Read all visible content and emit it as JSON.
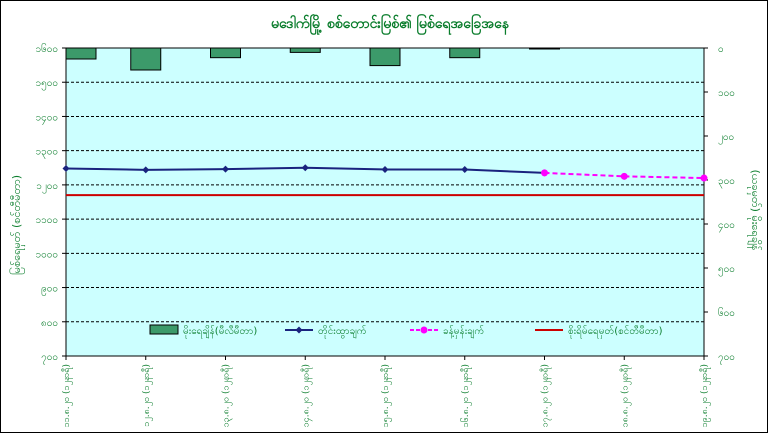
{
  "chart_data": {
    "type": "bar+line",
    "title": "မဒေါက်မြို့ စစ်တောင်းမြစ်၏ မြစ်ရေအခြေအနေ",
    "ylabel_left": "မြစ်ရေမှတ် (စင်တီမီတာ)",
    "ylabel_right": "(ယခုမှတ်) မိုးရေချိန်",
    "left_axis": {
      "min": 700,
      "max": 1600,
      "step": 100,
      "tick_labels": [
        "၇၀၀",
        "၈၀၀",
        "၉၀၀",
        "၁၀၀၀",
        "၁၁၀၀",
        "၁၂၀၀",
        "၁၃၀၀",
        "၁၄၀၀",
        "၁၅၀၀",
        "၁၆၀၀"
      ]
    },
    "right_axis": {
      "min": 0,
      "max": 700,
      "step": 100,
      "inverted": true,
      "tick_labels": [
        "၀",
        "၁၀၀",
        "၂၀၀",
        "၃၀၀",
        "၄၀၀",
        "၅၀၀",
        "၆၀၀",
        "၇၀၀"
      ]
    },
    "categories": [
      "၁၁.၈.၂၀ (၁၂နာရီ)",
      "၁၂.၈.၂၀ (၁၂နာရီ)",
      "၁၃.၈.၂၀ (၁၂နာရီ)",
      "၁၄.၈.၂၀ (၁၂နာရီ)",
      "၁၅.၈.၂၀ (၁၂နာရီ)",
      "၁၆.၈.၂၀ (၁၂နာရီ)",
      "၁၇.၈.၂၀ (၁၂နာရီ)",
      "၁၈.၈.၂၀ (၁၂နာရီ)",
      "၁၉.၈.၂၀ (၁၂နာရီ)"
    ],
    "series": [
      {
        "name": "မိုးရေချိန်(မီလီမီတာ)",
        "kind": "bar",
        "axis": "right",
        "values": [
          25,
          50,
          22,
          10,
          40,
          22,
          2,
          null,
          null
        ],
        "color": "#3c9a6a"
      },
      {
        "name": "တိုင်းထွာချက်",
        "kind": "line",
        "axis": "left",
        "values": [
          1248,
          1244,
          1246,
          1250,
          1245,
          1245,
          1235,
          null,
          null
        ],
        "color": "#1a237e"
      },
      {
        "name": "ခန့်မှန်းချက်",
        "kind": "dashed-line",
        "axis": "left",
        "values": [
          null,
          null,
          null,
          null,
          null,
          null,
          1235,
          1225,
          1220
        ],
        "color": "#ff00ff"
      },
      {
        "name": "စိုးရိမ်ရေမှတ်(စင်တီမီတာ)",
        "kind": "hline",
        "axis": "left",
        "value": 1170,
        "color": "#cc0000"
      }
    ],
    "grid": true,
    "legend_position": "bottom-inside"
  }
}
